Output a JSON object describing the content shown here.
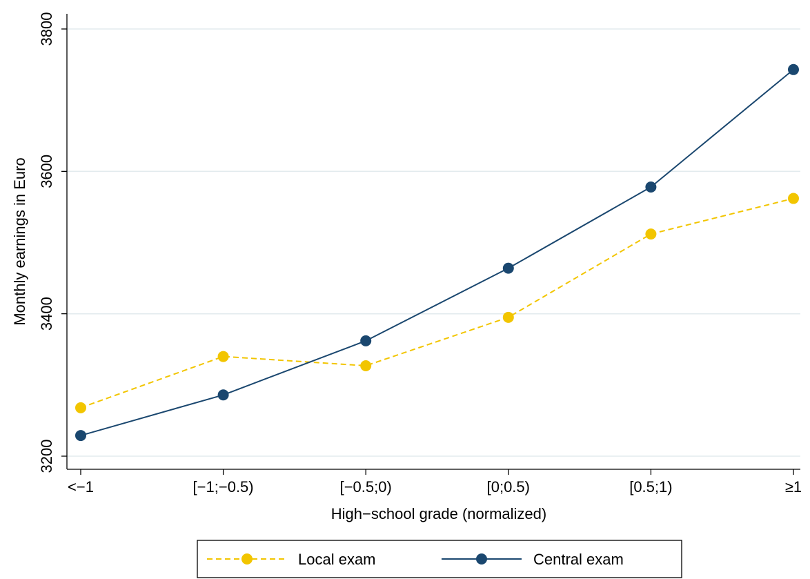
{
  "chart_data": {
    "type": "line",
    "title": "",
    "xlabel": "High−school grade (normalized)",
    "ylabel": "Monthly earnings in Euro",
    "categories": [
      "<−1",
      "[−1;−0.5)",
      "[−0.5;0)",
      "[0;0.5)",
      "[0.5;1)",
      "≥1"
    ],
    "ylim": [
      3200,
      3800
    ],
    "yticks": [
      3200,
      3400,
      3600,
      3800
    ],
    "grid": true,
    "legend_position": "bottom",
    "series": [
      {
        "name": "Local exam",
        "values": [
          3268,
          3340,
          3327,
          3395,
          3512,
          3562
        ],
        "color": "#F2C500",
        "dash": "dashed"
      },
      {
        "name": "Central exam",
        "values": [
          3229,
          3286,
          3362,
          3464,
          3578,
          3743
        ],
        "color": "#1A476F",
        "dash": "solid"
      }
    ]
  }
}
